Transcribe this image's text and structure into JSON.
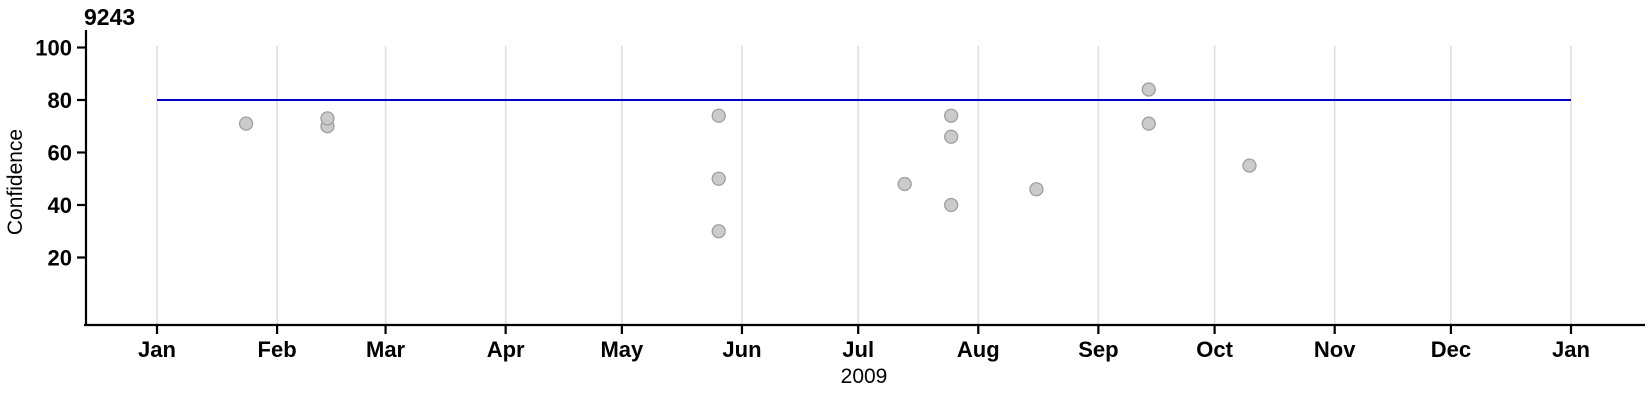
{
  "page": {
    "background": "#ffffff"
  },
  "chart_data": {
    "type": "scatter",
    "title": "9243",
    "xlabel": "2009",
    "ylabel": "Confidence",
    "legend": "none",
    "x_axis": {
      "kind": "time",
      "start": "2009-01-01",
      "end": "2010-01-01",
      "tick_labels": [
        "Jan",
        "Feb",
        "Mar",
        "Apr",
        "May",
        "Jun",
        "Jul",
        "Aug",
        "Sep",
        "Oct",
        "Nov",
        "Dec",
        "Jan"
      ],
      "grid": "vertical-monthly"
    },
    "y_axis": {
      "ticks": [
        100,
        80,
        60,
        40,
        20
      ],
      "ylim": [
        -6,
        107
      ],
      "grid": "none"
    },
    "reference_line": {
      "value": 80,
      "color": "#0000C8"
    },
    "points": [
      {
        "date": "2009-01-24",
        "value": 71
      },
      {
        "date": "2009-02-14",
        "value": 70
      },
      {
        "date": "2009-02-14",
        "value": 73
      },
      {
        "date": "2009-05-26",
        "value": 74
      },
      {
        "date": "2009-05-26",
        "value": 50
      },
      {
        "date": "2009-05-26",
        "value": 30
      },
      {
        "date": "2009-07-13",
        "value": 48
      },
      {
        "date": "2009-07-25",
        "value": 74
      },
      {
        "date": "2009-07-25",
        "value": 66
      },
      {
        "date": "2009-07-25",
        "value": 40
      },
      {
        "date": "2009-08-16",
        "value": 46
      },
      {
        "date": "2009-09-14",
        "value": 84
      },
      {
        "date": "2009-09-14",
        "value": 71
      },
      {
        "date": "2009-10-10",
        "value": 55
      }
    ],
    "point_style": {
      "fill": "#CBCBCB",
      "stroke": "#9E9E9E",
      "radius": 6.5
    },
    "grid_color": "#E0E0E0",
    "axis_color": "#000000"
  }
}
